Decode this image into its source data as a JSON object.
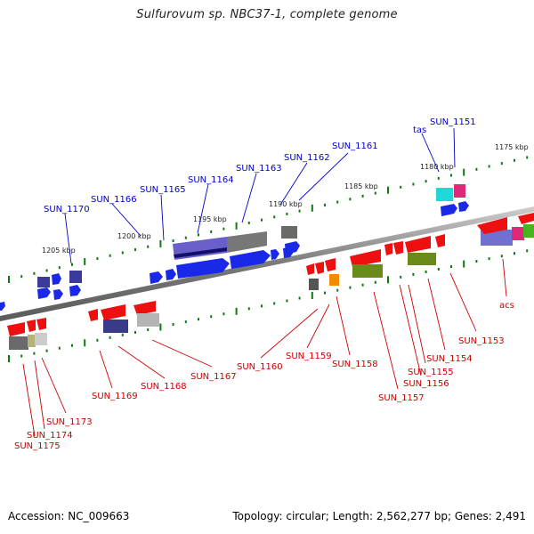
{
  "title": "Sulfurovum sp. NBC37-1, complete genome",
  "footer": {
    "accession": "Accession: NC_009663",
    "summary": "Topology: circular; Length: 2,562,277 bp; Genes: 2,491"
  },
  "colors": {
    "forward_label": "#0000c8",
    "reverse_label": "#cc0000",
    "backbone": "#8a8a8a",
    "tick": "#0e7a0e"
  },
  "kbp_marks": [
    "1175 kbp",
    "1180 kbp",
    "1185 kbp",
    "1190 kbp",
    "1195 kbp",
    "1200 kbp",
    "1205 kbp"
  ],
  "forward_genes": [
    "SUN_1151",
    "tas",
    "SUN_1161",
    "SUN_1162",
    "SUN_1163",
    "SUN_1164",
    "SUN_1165",
    "SUN_1166",
    "SUN_1170"
  ],
  "reverse_genes": [
    "acs",
    "SUN_1153",
    "SUN_1154",
    "SUN_1155",
    "SUN_1156",
    "SUN_1157",
    "SUN_1158",
    "SUN_1159",
    "SUN_1160",
    "SUN_1167",
    "SUN_1168",
    "SUN_1169",
    "SUN_1173",
    "SUN_1174",
    "SUN_1175"
  ]
}
